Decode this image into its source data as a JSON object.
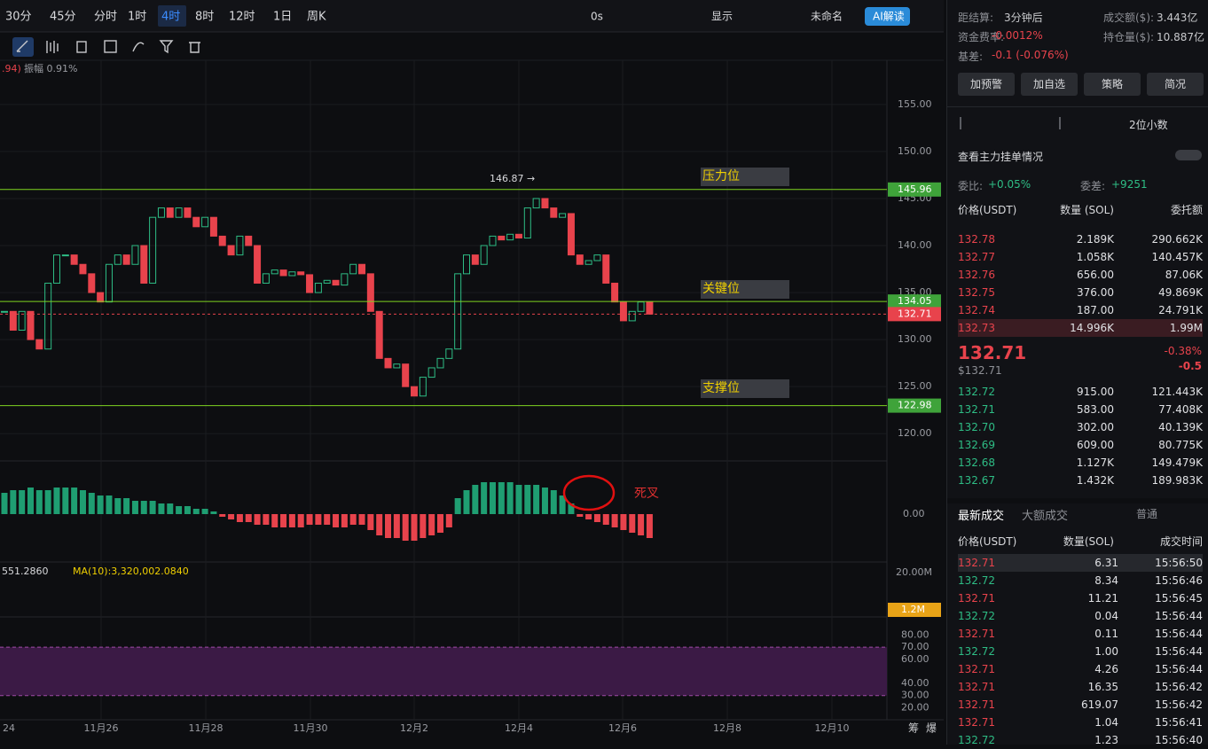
{
  "toolbar": {
    "intervals": [
      "30分",
      "45分",
      "分时",
      "1时",
      "4时",
      "8时",
      "12时",
      "1日",
      "周K"
    ],
    "active": 4,
    "right": [
      "0s",
      "显示",
      "未命名",
      "AI解读"
    ]
  },
  "info_line": {
    "change": ".94)",
    "amplitude": "振幅 0.91%"
  },
  "chart_data": {
    "type": "candlestick",
    "ylim": [
      117.1,
      159.7
    ],
    "yticks": [
      {
        "value": 120,
        "label": "120.00"
      },
      {
        "value": 125,
        "label": "125.00"
      },
      {
        "value": 130,
        "label": "130.00"
      },
      {
        "value": 135,
        "label": "135.00"
      },
      {
        "value": 140,
        "label": "140.00"
      },
      {
        "value": 145,
        "label": "145.00"
      },
      {
        "value": 150,
        "label": "150.00"
      },
      {
        "value": 155,
        "label": "155.00"
      }
    ],
    "closes": [
      133,
      131,
      133,
      130,
      129,
      136,
      139,
      139,
      138,
      137,
      135,
      134,
      138,
      139,
      138,
      140,
      136,
      143,
      144,
      143,
      144,
      143,
      142,
      143,
      141,
      140,
      139,
      141,
      140,
      136,
      137,
      137.4,
      136.8,
      137.2,
      136.9,
      135,
      136,
      136.3,
      135.8,
      137,
      138,
      137,
      133,
      128,
      127,
      127.4,
      125,
      124,
      126,
      127,
      128,
      129,
      137,
      139,
      138,
      140,
      141,
      140.6,
      141.2,
      140.8,
      144,
      145,
      144,
      143,
      143.4,
      139,
      138,
      138.4,
      139,
      136,
      134,
      132,
      133,
      134,
      132.71
    ],
    "levels": [
      {
        "value": 145.96,
        "label": "145.96",
        "name": "压力位"
      },
      {
        "value": 134.05,
        "label": "134.05",
        "name": "关键位"
      },
      {
        "value": 122.98,
        "label": "122.98",
        "name": "支撑位"
      }
    ],
    "last": {
      "value": 132.71,
      "label": "132.71"
    },
    "high_mark": {
      "value": 146.87,
      "label": "146.87 →"
    },
    "dates": [
      "24",
      "11月26",
      "11月28",
      "11月30",
      "12月2",
      "12月4",
      "12月6",
      "12月8",
      "12月10"
    ],
    "macd": {
      "ylim": [
        -1.8,
        1.8
      ],
      "yticks": [
        {
          "value": 0,
          "label": "0.00"
        }
      ],
      "values": [
        0.8,
        0.9,
        0.9,
        1.0,
        0.9,
        0.9,
        1.0,
        1.0,
        1.0,
        0.9,
        0.8,
        0.7,
        0.7,
        0.6,
        0.6,
        0.5,
        0.5,
        0.5,
        0.4,
        0.4,
        0.3,
        0.3,
        0.2,
        0.2,
        0.1,
        -0.1,
        -0.2,
        -0.3,
        -0.3,
        -0.4,
        -0.4,
        -0.5,
        -0.5,
        -0.5,
        -0.5,
        -0.4,
        -0.4,
        -0.4,
        -0.5,
        -0.5,
        -0.4,
        -0.4,
        -0.6,
        -0.8,
        -0.9,
        -0.9,
        -1.0,
        -1.0,
        -0.9,
        -0.8,
        -0.7,
        -0.5,
        0.6,
        0.9,
        1.1,
        1.2,
        1.2,
        1.2,
        1.2,
        1.1,
        1.1,
        1.1,
        1.0,
        0.9,
        0.7,
        0.4,
        -0.1,
        -0.2,
        -0.3,
        -0.4,
        -0.5,
        -0.6,
        -0.7,
        -0.8,
        -0.9
      ],
      "annotation": "死叉"
    },
    "volume": {
      "header": "551.2860",
      "ma": "MA(10):3,320,002.0840",
      "yticks": [
        {
          "value": 20,
          "label": "20.00M"
        }
      ],
      "last": "1.2M"
    },
    "rsi": {
      "ylim": [
        10,
        95
      ],
      "yticks": [
        {
          "value": 80,
          "label": "80.00"
        },
        {
          "value": 70,
          "label": "70.00"
        },
        {
          "value": 60,
          "label": "60.00"
        },
        {
          "value": 40,
          "label": "40.00"
        },
        {
          "value": 30,
          "label": "30.00"
        },
        {
          "value": 20,
          "label": "20.00"
        }
      ]
    },
    "corner": [
      "筹",
      "爆"
    ]
  },
  "side": {
    "stats": [
      [
        "距结算:",
        "3分钟后",
        "成交额($):",
        "3.443亿"
      ],
      [
        "资金费率:",
        "-0.0012%",
        "持仓量($):",
        "10.887亿"
      ],
      [
        "基差:",
        "-0.1 (-0.076%)",
        "",
        ""
      ]
    ],
    "buttons": [
      "加预警",
      "加自选",
      "策略",
      "简况"
    ],
    "decimals": "2位小数",
    "main_orders": "查看主力挂单情况",
    "ratio": [
      "委比:",
      "+0.05%",
      "委差:",
      "+9251"
    ],
    "book_head": [
      "价格(USDT)",
      "数量 (SOL)",
      "委托额"
    ],
    "asks": [
      [
        "132.78",
        "2.189K",
        "290.662K"
      ],
      [
        "132.77",
        "1.058K",
        "140.457K"
      ],
      [
        "132.76",
        "656.00",
        "87.06K"
      ],
      [
        "132.75",
        "376.00",
        "49.869K"
      ],
      [
        "132.74",
        "187.00",
        "24.791K"
      ],
      [
        "132.73",
        "14.996K",
        "1.99M"
      ]
    ],
    "mid": {
      "price": "132.71",
      "usd": "$132.71",
      "pct": "-0.38%",
      "chg": "-0.5"
    },
    "bids": [
      [
        "132.72",
        "915.00",
        "121.443K"
      ],
      [
        "132.71",
        "583.00",
        "77.408K"
      ],
      [
        "132.70",
        "302.00",
        "40.139K"
      ],
      [
        "132.69",
        "609.00",
        "80.775K"
      ],
      [
        "132.68",
        "1.127K",
        "149.479K"
      ],
      [
        "132.67",
        "1.432K",
        "189.983K"
      ]
    ],
    "tabs": [
      "最新成交",
      "大额成交",
      "普通"
    ],
    "trade_head": [
      "价格(USDT)",
      "数量(SOL)",
      "成交时间"
    ],
    "trades": [
      {
        "row": [
          "132.71",
          "6.31",
          "15:56:50"
        ],
        "color": "#e8434c"
      },
      {
        "row": [
          "132.72",
          "8.34",
          "15:56:46"
        ],
        "color": "#2ebd85"
      },
      {
        "row": [
          "132.71",
          "11.21",
          "15:56:45"
        ],
        "color": "#e8434c"
      },
      {
        "row": [
          "132.72",
          "0.04",
          "15:56:44"
        ],
        "color": "#2ebd85"
      },
      {
        "row": [
          "132.71",
          "0.11",
          "15:56:44"
        ],
        "color": "#e8434c"
      },
      {
        "row": [
          "132.72",
          "1.00",
          "15:56:44"
        ],
        "color": "#2ebd85"
      },
      {
        "row": [
          "132.71",
          "4.26",
          "15:56:44"
        ],
        "color": "#e8434c"
      },
      {
        "row": [
          "132.71",
          "16.35",
          "15:56:42"
        ],
        "color": "#e8434c"
      },
      {
        "row": [
          "132.71",
          "619.07",
          "15:56:42"
        ],
        "color": "#e8434c"
      },
      {
        "row": [
          "132.71",
          "1.04",
          "15:56:41"
        ],
        "color": "#e8434c"
      },
      {
        "row": [
          "132.72",
          "1.23",
          "15:56:40"
        ],
        "color": "#2ebd85"
      }
    ]
  }
}
